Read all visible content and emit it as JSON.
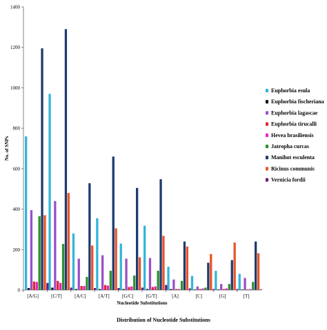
{
  "chart_data": {
    "type": "bar",
    "xlabel": "Nucleotide Substitutions",
    "ylabel": "No. of SNPs",
    "caption": "Distribution  of Nucleotide Substitutions",
    "ylim": [
      0,
      1400
    ],
    "yticks": [
      0,
      200,
      400,
      600,
      800,
      1000,
      1200,
      1400
    ],
    "grid": false,
    "legend_position": "right",
    "categories": [
      "[A/G]",
      "[C/T]",
      "[A/C]",
      "[A/T]",
      "[G/C]",
      "[G/T]",
      "[A]",
      "[C]",
      "[G]",
      "[T]"
    ],
    "series": [
      {
        "name": "Euphorbia esula",
        "color": "#33b5d9",
        "values": [
          760,
          970,
          280,
          355,
          230,
          318,
          115,
          70,
          95,
          80
        ]
      },
      {
        "name": "Euphorbia fischeriana",
        "color": "#111111",
        "values": [
          10,
          12,
          5,
          5,
          5,
          5,
          5,
          3,
          3,
          3
        ]
      },
      {
        "name": "Euphorbia lagascae",
        "color": "#9a4fc7",
        "values": [
          395,
          440,
          155,
          172,
          155,
          158,
          52,
          18,
          30,
          60
        ]
      },
      {
        "name": "Euphorbia tirucalli",
        "color": "#e3262e",
        "values": [
          42,
          45,
          20,
          25,
          15,
          15,
          5,
          5,
          5,
          3
        ]
      },
      {
        "name": "Hevea brasiliensis",
        "color": "#e81ecb",
        "values": [
          40,
          35,
          20,
          22,
          18,
          18,
          5,
          8,
          8,
          5
        ]
      },
      {
        "name": "Jatropha curcas",
        "color": "#2f8f2f",
        "values": [
          365,
          228,
          65,
          95,
          72,
          95,
          45,
          12,
          30,
          40
        ]
      },
      {
        "name": "Manihot esculenta",
        "color": "#1f3a6e",
        "values": [
          1195,
          1290,
          528,
          660,
          505,
          548,
          240,
          135,
          148,
          240
        ]
      },
      {
        "name": "Ricinus communis",
        "color": "#e8542a",
        "values": [
          370,
          480,
          220,
          305,
          162,
          268,
          215,
          178,
          235,
          182
        ]
      },
      {
        "name": "Vernicia fordii",
        "color": "#6a1a7a",
        "values": [
          35,
          12,
          10,
          10,
          12,
          25,
          8,
          5,
          5,
          3
        ]
      }
    ]
  }
}
